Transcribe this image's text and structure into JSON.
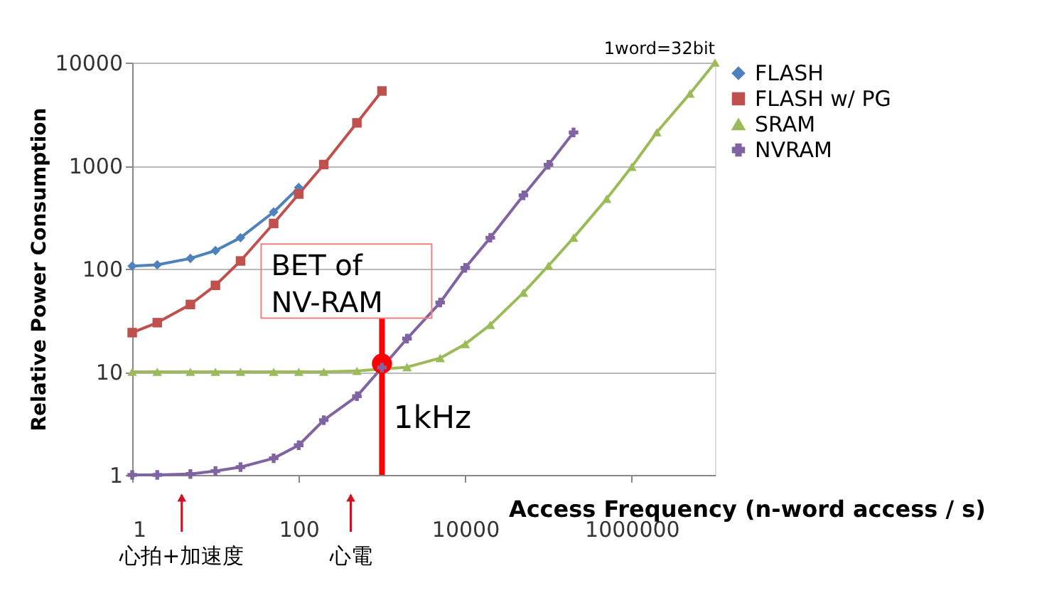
{
  "chart_data": {
    "type": "line",
    "xlabel": "Access Frequency (n-word access / s)",
    "ylabel": "Relative Power Consumption",
    "log": "xy",
    "xlim": [
      1,
      10000000
    ],
    "ylim": [
      1,
      10000
    ],
    "xticks": [
      1,
      100,
      10000,
      1000000
    ],
    "yticks": [
      1,
      10,
      100,
      1000,
      10000
    ],
    "grid": "y",
    "legend": "right",
    "line_style": "solid",
    "series": [
      {
        "name": "FLASH",
        "color": "#4f81bd",
        "marker": "diamond",
        "x": [
          1,
          2,
          5,
          10,
          20,
          50,
          100
        ],
        "values": [
          106,
          109,
          126,
          150,
          200,
          355,
          613
        ]
      },
      {
        "name": "FLASH w/ PG",
        "color": "#c0504d",
        "marker": "square",
        "x": [
          1,
          2,
          5,
          10,
          20,
          50,
          100,
          200,
          500,
          1000
        ],
        "values": [
          24,
          30,
          45,
          69,
          119,
          275,
          530,
          1025,
          2600,
          5300
        ]
      },
      {
        "name": "SRAM",
        "color": "#9bbb59",
        "marker": "triangle",
        "x": [
          1,
          2,
          5,
          10,
          20,
          50,
          100,
          200,
          500,
          1000,
          2000,
          5000,
          10000,
          20000,
          50000,
          100000,
          200000,
          500000,
          1000000,
          2000000,
          5000000,
          10000000
        ],
        "values": [
          10,
          10,
          10,
          10,
          10,
          10,
          10,
          10,
          10.2,
          null,
          11.1,
          13.6,
          18.6,
          28.6,
          58.6,
          107,
          200,
          477,
          975,
          2110,
          5000,
          10000
        ]
      },
      {
        "name": "NVRAM",
        "color": "#8064a2",
        "marker": "cross",
        "x": [
          1,
          2,
          5,
          10,
          20,
          50,
          100,
          200,
          500,
          1000,
          2000,
          5000,
          10000,
          20000,
          50000,
          100000,
          200000
        ],
        "values": [
          1.0,
          1.0,
          1.02,
          1.09,
          1.19,
          1.45,
          1.94,
          3.4,
          5.8,
          11,
          21,
          47,
          102,
          200,
          515,
          1020,
          2100
        ]
      }
    ],
    "ref_lines": [
      {
        "axis": "x",
        "value": 1000,
        "label": "1kHz",
        "color": "#ff0000"
      }
    ],
    "annotations": [
      {
        "text": "BET of\nNV-RAM",
        "x": 1000,
        "y": 12
      },
      "心拍+加速度",
      "心電",
      "1word=32bit"
    ]
  }
}
